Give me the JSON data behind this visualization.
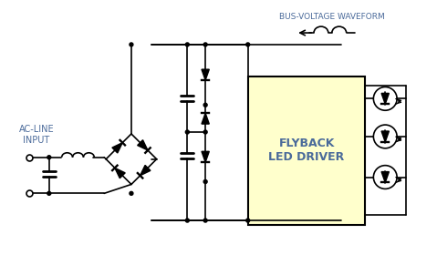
{
  "bg_color": "#ffffff",
  "box_color": "#ffffcc",
  "line_color": "#000000",
  "text_color": "#4a6a9a",
  "title_text": "FLYBACK\nLED DRIVER",
  "label_ac": "AC-LINE\nINPUT",
  "label_bus": "BUS-VOLTAGE WAVEFORM",
  "figsize": [
    4.79,
    2.91
  ],
  "dpi": 100
}
